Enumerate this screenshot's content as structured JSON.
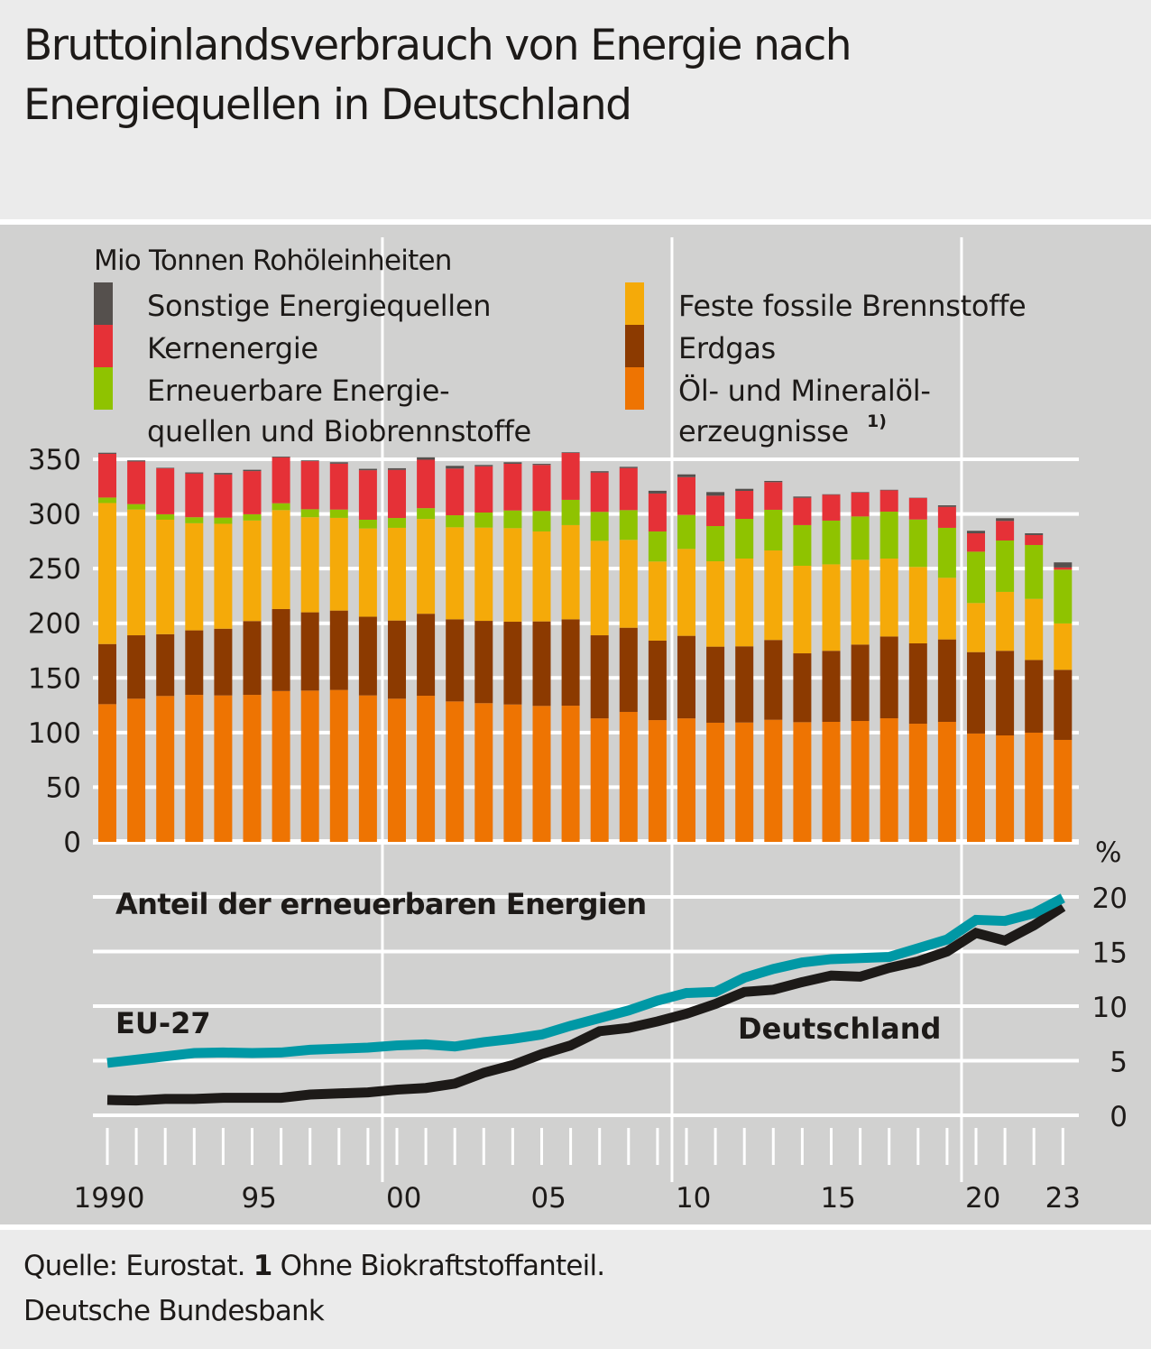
{
  "title": "Bruttoinlandsverbrauch von Energie nach Energiequellen in Deutschland",
  "title_lines": [
    "Bruttoinlandsverbrauch von Energie nach",
    "Energiequellen in Deutschland"
  ],
  "footer": {
    "source_prefix": "Quelle: Eurostat. ",
    "footnote_marker": "1",
    "footnote_text": " Ohne Biokraftstoffanteil.",
    "publisher": "Deutsche Bundesbank"
  },
  "colors": {
    "oil": "#ee7402",
    "gas": "#8c3a00",
    "coal": "#f5aa09",
    "renewables": "#8fc300",
    "nuclear": "#e53137",
    "other": "#55504d",
    "eu27": "#0098a5",
    "germany": "#1d1a18",
    "grid": "#ffffff",
    "panel": "#d1d1d0",
    "background": "#ebebeb"
  },
  "chart_data": [
    {
      "type": "bar",
      "stacked": true,
      "title": "Bruttoinlandsverbrauch von Energie nach Energiequellen in Deutschland",
      "ylabel": "Mio Tonnen Rohöleinheiten",
      "xlabel": "",
      "ylim": [
        0,
        350
      ],
      "yticks": [
        0,
        50,
        100,
        150,
        200,
        250,
        300,
        350
      ],
      "grid": true,
      "legend_position": "top",
      "categories": [
        "1990",
        "1991",
        "1992",
        "1993",
        "1994",
        "1995",
        "1996",
        "1997",
        "1998",
        "1999",
        "2000",
        "2001",
        "2002",
        "2003",
        "2004",
        "2005",
        "2006",
        "2007",
        "2008",
        "2009",
        "2010",
        "2011",
        "2012",
        "2013",
        "2014",
        "2015",
        "2016",
        "2017",
        "2018",
        "2019",
        "2020",
        "2021",
        "2022",
        "2023"
      ],
      "legend": [
        {
          "key": "other",
          "label": "Sonstige Energiequellen"
        },
        {
          "key": "nuclear",
          "label": "Kernenergie"
        },
        {
          "key": "renewables",
          "label_lines": [
            "Erneuerbare Energie-",
            "quellen und Biobrennstoffe"
          ],
          "label": "Erneuerbare Energiequellen und Biobrennstoffe"
        },
        {
          "key": "coal",
          "label": "Feste fossile Brennstoffe"
        },
        {
          "key": "gas",
          "label": "Erdgas"
        },
        {
          "key": "oil",
          "label_lines": [
            "Öl- und Mineralöl-",
            "erzeugnisse"
          ],
          "label": "Öl- und Mineralölerzeugnisse",
          "footnote": "1)"
        }
      ],
      "series": [
        {
          "key": "oil",
          "name": "Öl- und Mineralölerzeugnisse",
          "values": [
            126,
            131,
            133.5,
            134.5,
            134,
            134.5,
            138,
            138.4,
            139,
            134,
            131,
            133.7,
            128.5,
            126.9,
            125.7,
            124.4,
            124.6,
            113,
            118.9,
            111.4,
            113,
            109,
            109.2,
            111.7,
            109.5,
            109.8,
            110.6,
            113.1,
            108.1,
            109.8,
            99.1,
            97.4,
            99.9,
            93.3
          ]
        },
        {
          "key": "gas",
          "name": "Erdgas",
          "values": [
            55,
            58,
            56.5,
            59,
            61,
            67.5,
            75,
            71.6,
            72.6,
            72,
            71.5,
            75,
            75.1,
            75.3,
            75.7,
            77.3,
            79,
            76,
            77,
            72.7,
            75.5,
            69.6,
            69.7,
            73,
            63,
            65,
            69.9,
            74.8,
            73.5,
            75.4,
            74.5,
            77.4,
            66.5,
            64.1
          ]
        },
        {
          "key": "coal",
          "name": "Feste fossile Brennstoffe",
          "values": [
            129,
            115,
            104.7,
            98,
            96,
            92,
            90.5,
            87,
            84.8,
            80.7,
            84.8,
            86.7,
            84.2,
            85.3,
            85.6,
            82.3,
            86.2,
            86.4,
            80.4,
            72.4,
            79.5,
            78.1,
            80.3,
            81.9,
            80.1,
            79.1,
            77.6,
            71.3,
            69.9,
            56.4,
            44.9,
            53.9,
            55.9,
            42.4
          ]
        },
        {
          "key": "renewables",
          "name": "Erneuerbare Energiequellen und Biobrennstoffe",
          "values": [
            5,
            5,
            5,
            5.5,
            5.6,
            5.7,
            6.3,
            7.3,
            7.6,
            8,
            9,
            9.9,
            11,
            13.8,
            16.2,
            18.7,
            23.1,
            26.5,
            27.2,
            27.5,
            31.1,
            32.2,
            36.3,
            37.2,
            37.2,
            40,
            39.6,
            42.9,
            43.4,
            45.7,
            47,
            47,
            49.3,
            49.2
          ]
        },
        {
          "key": "nuclear",
          "name": "Kernenergie",
          "values": [
            40,
            39,
            42,
            40,
            39.5,
            39.5,
            42,
            44,
            42,
            45.3,
            44,
            44.3,
            42.7,
            42.3,
            42.7,
            42.1,
            42.9,
            36,
            38.5,
            34.7,
            34.6,
            27.8,
            25.6,
            25.3,
            25,
            23.6,
            21.8,
            19.5,
            19.6,
            19.2,
            16.8,
            17.9,
            9.1,
            2
          ]
        },
        {
          "key": "other",
          "name": "Sonstige Energiequellen",
          "values": [
            1,
            1,
            0.5,
            1,
            1.4,
            1.2,
            0.7,
            0.7,
            1.3,
            1.3,
            1.5,
            2.2,
            2.5,
            1.2,
            1.4,
            1,
            0.6,
            1.2,
            1.1,
            2.5,
            2.5,
            3.3,
            1.9,
            1.1,
            1.1,
            0.5,
            0.5,
            0.5,
            0.3,
            1.4,
            2.3,
            2.5,
            1.6,
            4.7
          ]
        }
      ]
    },
    {
      "type": "line",
      "title": "Anteil der erneuerbaren Energien",
      "ylabel": "%",
      "xlabel": "",
      "ylim": [
        0,
        20
      ],
      "yticks": [
        0,
        5,
        10,
        15,
        20
      ],
      "yaxis_side": "right",
      "grid": true,
      "x": [
        1990,
        1991,
        1992,
        1993,
        1994,
        1995,
        1996,
        1997,
        1998,
        1999,
        2000,
        2001,
        2002,
        2003,
        2004,
        2005,
        2006,
        2007,
        2008,
        2009,
        2010,
        2011,
        2012,
        2013,
        2014,
        2015,
        2016,
        2017,
        2018,
        2019,
        2020,
        2021,
        2022,
        2023
      ],
      "xtick_labels": [
        {
          "year": 1990,
          "label": "1990"
        },
        {
          "year": 1995,
          "label": "95"
        },
        {
          "year": 2000,
          "label": "00"
        },
        {
          "year": 2005,
          "label": "05"
        },
        {
          "year": 2010,
          "label": "10"
        },
        {
          "year": 2015,
          "label": "15"
        },
        {
          "year": 2020,
          "label": "20"
        },
        {
          "year": 2023,
          "label": "23"
        }
      ],
      "series": [
        {
          "key": "eu27",
          "name": "EU-27",
          "values": [
            4.8,
            5.1,
            5.4,
            5.7,
            5.75,
            5.7,
            5.75,
            6.0,
            6.1,
            6.2,
            6.4,
            6.5,
            6.3,
            6.7,
            7.0,
            7.4,
            8.2,
            8.9,
            9.6,
            10.5,
            11.2,
            11.3,
            12.6,
            13.4,
            14.0,
            14.3,
            14.4,
            14.5,
            15.3,
            16.1,
            17.9,
            17.8,
            18.5,
            19.9
          ]
        },
        {
          "key": "germany",
          "name": "Deutschland",
          "values": [
            1.4,
            1.35,
            1.5,
            1.5,
            1.6,
            1.6,
            1.6,
            1.9,
            2.0,
            2.1,
            2.35,
            2.5,
            2.9,
            3.9,
            4.6,
            5.6,
            6.4,
            7.7,
            8.0,
            8.6,
            9.3,
            10.2,
            11.3,
            11.5,
            12.2,
            12.8,
            12.7,
            13.5,
            14.1,
            15.0,
            16.7,
            16.0,
            17.4,
            19.1
          ]
        }
      ]
    }
  ]
}
